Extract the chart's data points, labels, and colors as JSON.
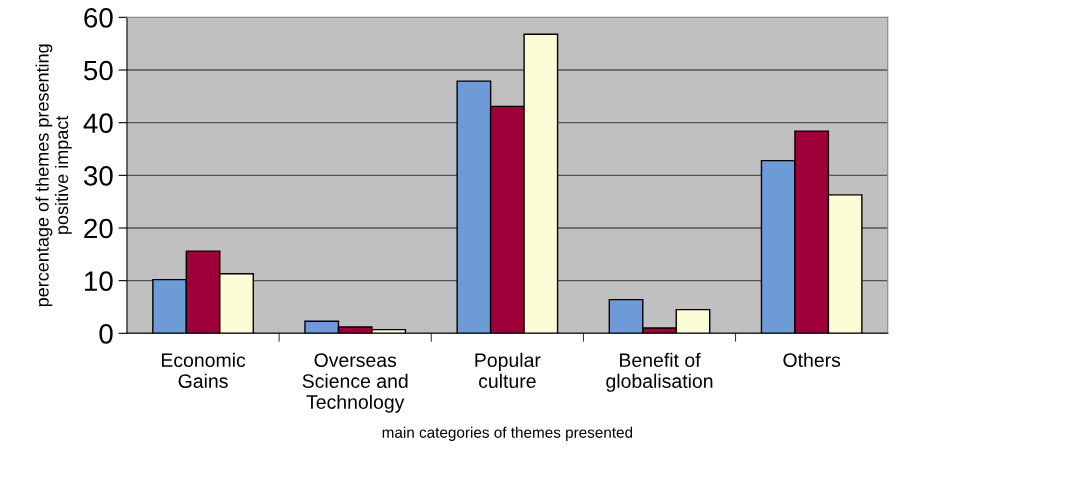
{
  "chart_data": {
    "type": "bar",
    "xlabel": "main categories of themes presented",
    "ylabel": "percentage of themes presenting\npositive impact",
    "categories": [
      "Economic\nGains",
      "Overseas\nScience and\nTechnology",
      "Popular\nculture",
      "Benefit of\nglobalisation",
      "Others"
    ],
    "series": [
      {
        "color": "#6f9ad8",
        "values": [
          10.2,
          2.3,
          47.9,
          6.4,
          32.8
        ]
      },
      {
        "color": "#a0003a",
        "values": [
          15.6,
          1.2,
          43.1,
          1.0,
          38.4
        ]
      },
      {
        "color": "#fbfbd6",
        "values": [
          11.3,
          0.7,
          56.8,
          4.5,
          26.3
        ]
      }
    ],
    "ylim": [
      0,
      60
    ],
    "yticks": [
      0,
      10,
      20,
      30,
      40,
      50,
      60
    ],
    "grid": "y"
  }
}
